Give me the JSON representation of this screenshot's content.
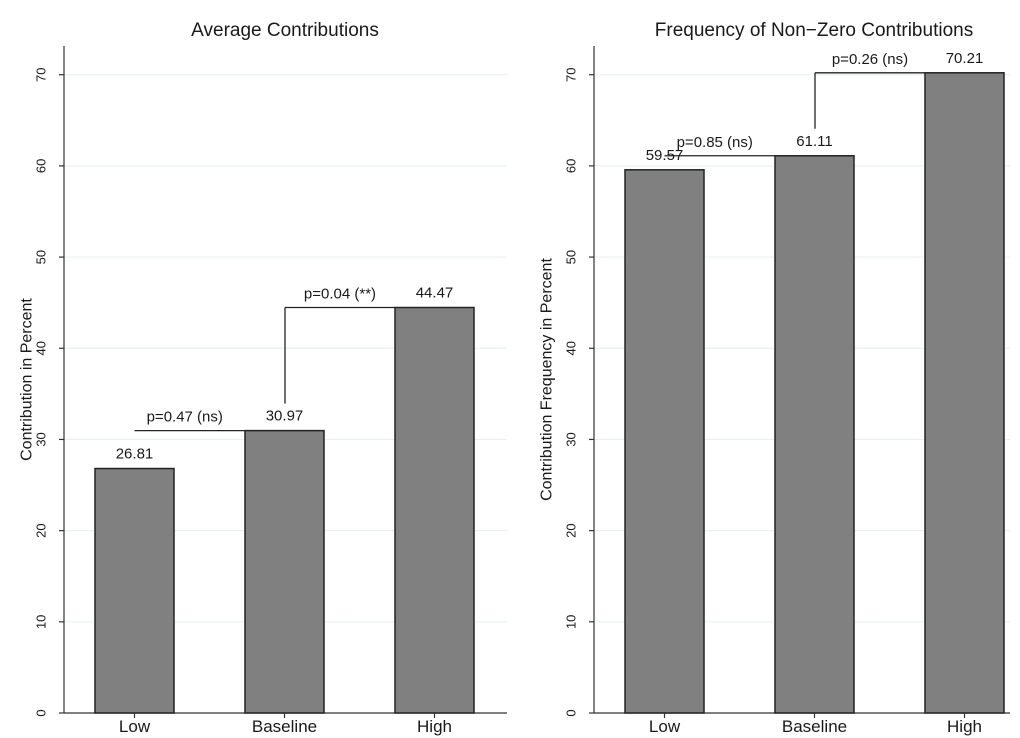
{
  "chart_data": [
    {
      "type": "bar",
      "title": "Average Contributions",
      "ylabel": "Contribution in Percent",
      "xlabel": "",
      "categories": [
        "Low",
        "Baseline",
        "High"
      ],
      "values": [
        26.81,
        30.97,
        44.47
      ],
      "value_labels": [
        "26.81",
        "30.97",
        "44.47"
      ],
      "ylim": [
        0,
        76
      ],
      "yticks": [
        0,
        10,
        20,
        30,
        40,
        50,
        60,
        70
      ],
      "grid": true,
      "bar_color": "#808080",
      "comparisons": [
        {
          "label": "p=0.47 (ns)",
          "from": 0,
          "to": 1
        },
        {
          "label": "p=0.04 (**)",
          "from": 1,
          "to": 2
        }
      ]
    },
    {
      "type": "bar",
      "title": "Frequency of Non−Zero Contributions",
      "ylabel": "Contribution Frequency in Percent",
      "xlabel": "",
      "categories": [
        "Low",
        "Baseline",
        "High"
      ],
      "values": [
        59.57,
        61.11,
        70.21
      ],
      "value_labels": [
        "59.57",
        "61.11",
        "70.21"
      ],
      "ylim": [
        0,
        76
      ],
      "yticks": [
        0,
        10,
        20,
        30,
        40,
        50,
        60,
        70
      ],
      "grid": true,
      "bar_color": "#808080",
      "comparisons": [
        {
          "label": "p=0.85 (ns)",
          "from": 0,
          "to": 1
        },
        {
          "label": "p=0.26 (ns)",
          "from": 1,
          "to": 2
        }
      ]
    }
  ]
}
